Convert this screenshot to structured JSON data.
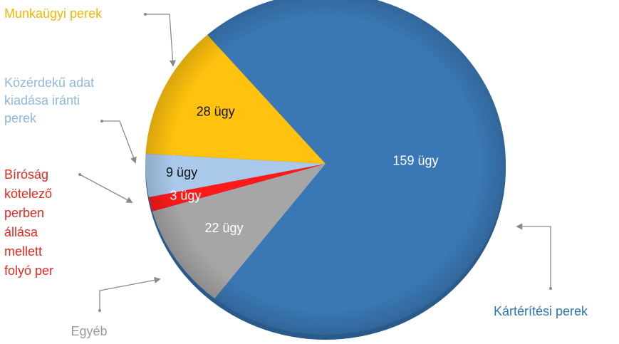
{
  "chart_data": {
    "type": "pie",
    "categories": [
      "Kártérítési perek",
      "Egyéb",
      "Bíróság kötelező perben állása mellett folyó per",
      "Közérdekű adat kiadása iránti perek",
      "Munkaügyi perek"
    ],
    "values": [
      159,
      22,
      3,
      9,
      28
    ],
    "value_labels": [
      "159 ügy",
      "22 ügy",
      "3 ügy",
      "9 ügy",
      "28 ügy"
    ],
    "colors": [
      "#3a78b5",
      "#a6a6a6",
      "#ff1a1a",
      "#a9c8ea",
      "#ffc20e"
    ],
    "label_colors": [
      "#2e75b6",
      "#9a9a9a",
      "#e8261f",
      "#8fb8e0",
      "#f2b600"
    ]
  }
}
